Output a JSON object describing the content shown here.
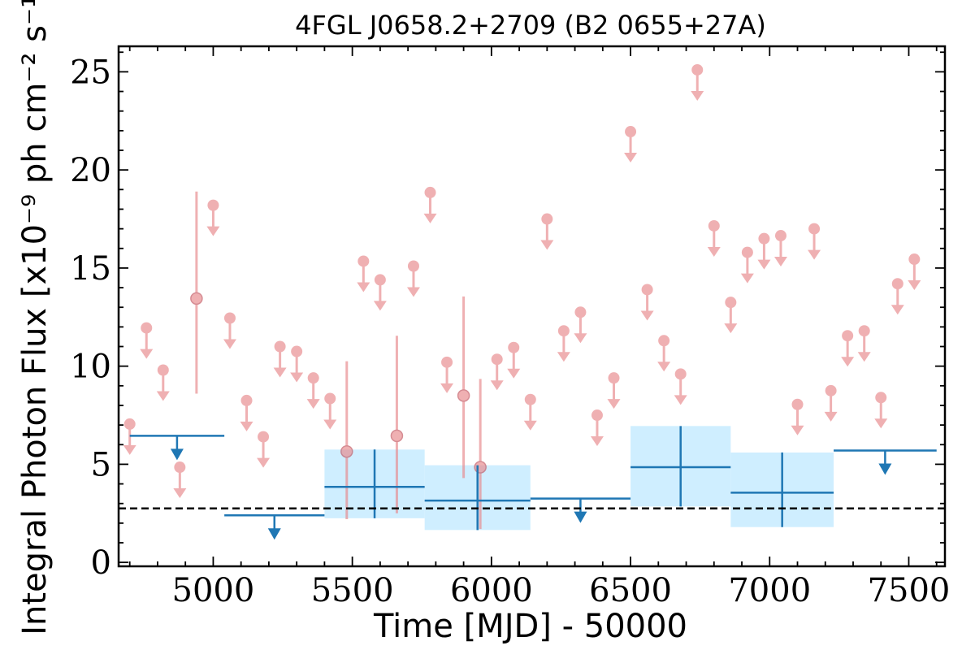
{
  "chart_data": {
    "type": "scatter",
    "title": "4FGL J0658.2+2709 (B2 0655+27A)",
    "xlabel": "Time [MJD] - 50000",
    "ylabel": "Integral Photon Flux [x10⁻⁹ ph cm⁻² s⁻¹]",
    "xlim": [
      4660,
      7630
    ],
    "ylim": [
      -0.2,
      26.3
    ],
    "x_ticks": [
      5000,
      5500,
      6000,
      6500,
      7000,
      7500
    ],
    "y_ticks": [
      0,
      5,
      10,
      15,
      20,
      25
    ],
    "x_tick_labels": [
      "5000",
      "5500",
      "6000",
      "6500",
      "7000",
      "7500"
    ],
    "y_tick_labels": [
      "0",
      "5",
      "10",
      "15",
      "20",
      "25"
    ],
    "grid": false,
    "colors": {
      "short_bins": "#e8868a",
      "long_bins": "#1f77b4",
      "long_bin_band": "#cfeeff",
      "reference_line": "#000000"
    },
    "reference_line": {
      "y": 2.75,
      "style": "dashed"
    },
    "short_bin_upper_limits": [
      {
        "x": 4700,
        "y": 7.05
      },
      {
        "x": 4760,
        "y": 11.95
      },
      {
        "x": 4820,
        "y": 9.8
      },
      {
        "x": 4880,
        "y": 4.85
      },
      {
        "x": 5000,
        "y": 18.2
      },
      {
        "x": 5060,
        "y": 12.45
      },
      {
        "x": 5120,
        "y": 8.25
      },
      {
        "x": 5180,
        "y": 6.4
      },
      {
        "x": 5240,
        "y": 11.0
      },
      {
        "x": 5300,
        "y": 10.75
      },
      {
        "x": 5360,
        "y": 9.4
      },
      {
        "x": 5420,
        "y": 8.35
      },
      {
        "x": 5540,
        "y": 15.35
      },
      {
        "x": 5600,
        "y": 14.4
      },
      {
        "x": 5720,
        "y": 15.1
      },
      {
        "x": 5780,
        "y": 18.85
      },
      {
        "x": 5840,
        "y": 10.2
      },
      {
        "x": 6020,
        "y": 10.35
      },
      {
        "x": 6080,
        "y": 10.95
      },
      {
        "x": 6140,
        "y": 8.3
      },
      {
        "x": 6200,
        "y": 17.5
      },
      {
        "x": 6260,
        "y": 11.8
      },
      {
        "x": 6320,
        "y": 12.75
      },
      {
        "x": 6380,
        "y": 7.5
      },
      {
        "x": 6440,
        "y": 9.4
      },
      {
        "x": 6500,
        "y": 21.95
      },
      {
        "x": 6560,
        "y": 13.9
      },
      {
        "x": 6620,
        "y": 11.3
      },
      {
        "x": 6680,
        "y": 9.6
      },
      {
        "x": 6740,
        "y": 25.1
      },
      {
        "x": 6800,
        "y": 17.15
      },
      {
        "x": 6860,
        "y": 13.25
      },
      {
        "x": 6920,
        "y": 15.8
      },
      {
        "x": 6980,
        "y": 16.5
      },
      {
        "x": 7040,
        "y": 16.65
      },
      {
        "x": 7100,
        "y": 8.05
      },
      {
        "x": 7160,
        "y": 17.0
      },
      {
        "x": 7220,
        "y": 8.75
      },
      {
        "x": 7280,
        "y": 11.55
      },
      {
        "x": 7340,
        "y": 11.8
      },
      {
        "x": 7400,
        "y": 8.4
      },
      {
        "x": 7460,
        "y": 14.2
      },
      {
        "x": 7520,
        "y": 15.45
      }
    ],
    "short_bin_detections": [
      {
        "x": 4940,
        "y": 13.45,
        "y_low": 8.6,
        "y_high": 18.9
      },
      {
        "x": 5480,
        "y": 5.65,
        "y_low": 2.2,
        "y_high": 10.25
      },
      {
        "x": 5660,
        "y": 6.45,
        "y_low": 2.5,
        "y_high": 11.55
      },
      {
        "x": 5900,
        "y": 8.5,
        "y_low": 4.3,
        "y_high": 13.55
      },
      {
        "x": 5960,
        "y": 4.85,
        "y_low": 1.7,
        "y_high": 9.35
      }
    ],
    "long_bin_upper_limits": [
      {
        "x_start": 4700,
        "x_end": 5040,
        "y": 6.45
      },
      {
        "x_start": 5040,
        "x_end": 5400,
        "y": 2.4
      },
      {
        "x_start": 6140,
        "x_end": 6500,
        "y": 3.25
      },
      {
        "x_start": 7230,
        "x_end": 7600,
        "y": 5.7
      }
    ],
    "long_bin_detections": [
      {
        "x_start": 5400,
        "x_end": 5760,
        "x": 5580,
        "y": 3.85,
        "y_low": 2.25,
        "y_high": 5.75
      },
      {
        "x_start": 5760,
        "x_end": 6140,
        "x": 5950,
        "y": 3.15,
        "y_low": 1.65,
        "y_high": 4.95
      },
      {
        "x_start": 6500,
        "x_end": 6860,
        "x": 6680,
        "y": 4.85,
        "y_low": 2.85,
        "y_high": 6.95
      },
      {
        "x_start": 6860,
        "x_end": 7230,
        "x": 7045,
        "y": 3.55,
        "y_low": 1.8,
        "y_high": 5.6
      }
    ]
  }
}
